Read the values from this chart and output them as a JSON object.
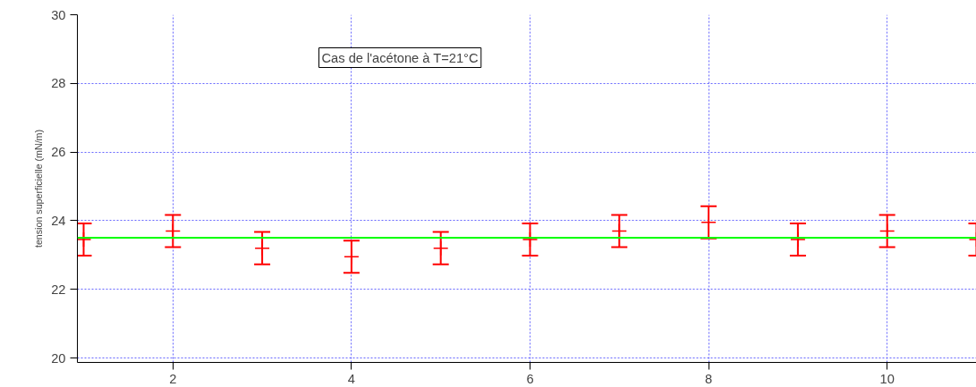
{
  "chart_data": {
    "type": "scatter",
    "ylabel": "tension superficielle (mN/m)",
    "x": [
      1,
      2,
      3,
      4,
      5,
      6,
      7,
      8,
      9,
      10,
      11
    ],
    "series": [
      {
        "color": "#ff0000",
        "values": [
          23.45,
          23.7,
          23.2,
          22.95,
          23.2,
          23.45,
          23.7,
          23.95,
          23.45,
          23.7,
          23.45
        ],
        "errors": [
          0.47,
          0.47,
          0.47,
          0.47,
          0.47,
          0.47,
          0.47,
          0.47,
          0.47,
          0.47,
          0.47
        ]
      }
    ],
    "xlim": [
      0.93,
      11
    ],
    "xticks": [
      2,
      4,
      6,
      8,
      10
    ],
    "ylim": [
      19.87,
      30
    ],
    "yticks": [
      20,
      22,
      24,
      26,
      28,
      30
    ],
    "grid": true,
    "marker": "cross",
    "ref_lines": [
      {
        "axis": "y",
        "value": 23.5,
        "color": "#00ff00"
      }
    ],
    "annotations": [
      "Cas de l'acétone à T=21°C"
    ]
  }
}
